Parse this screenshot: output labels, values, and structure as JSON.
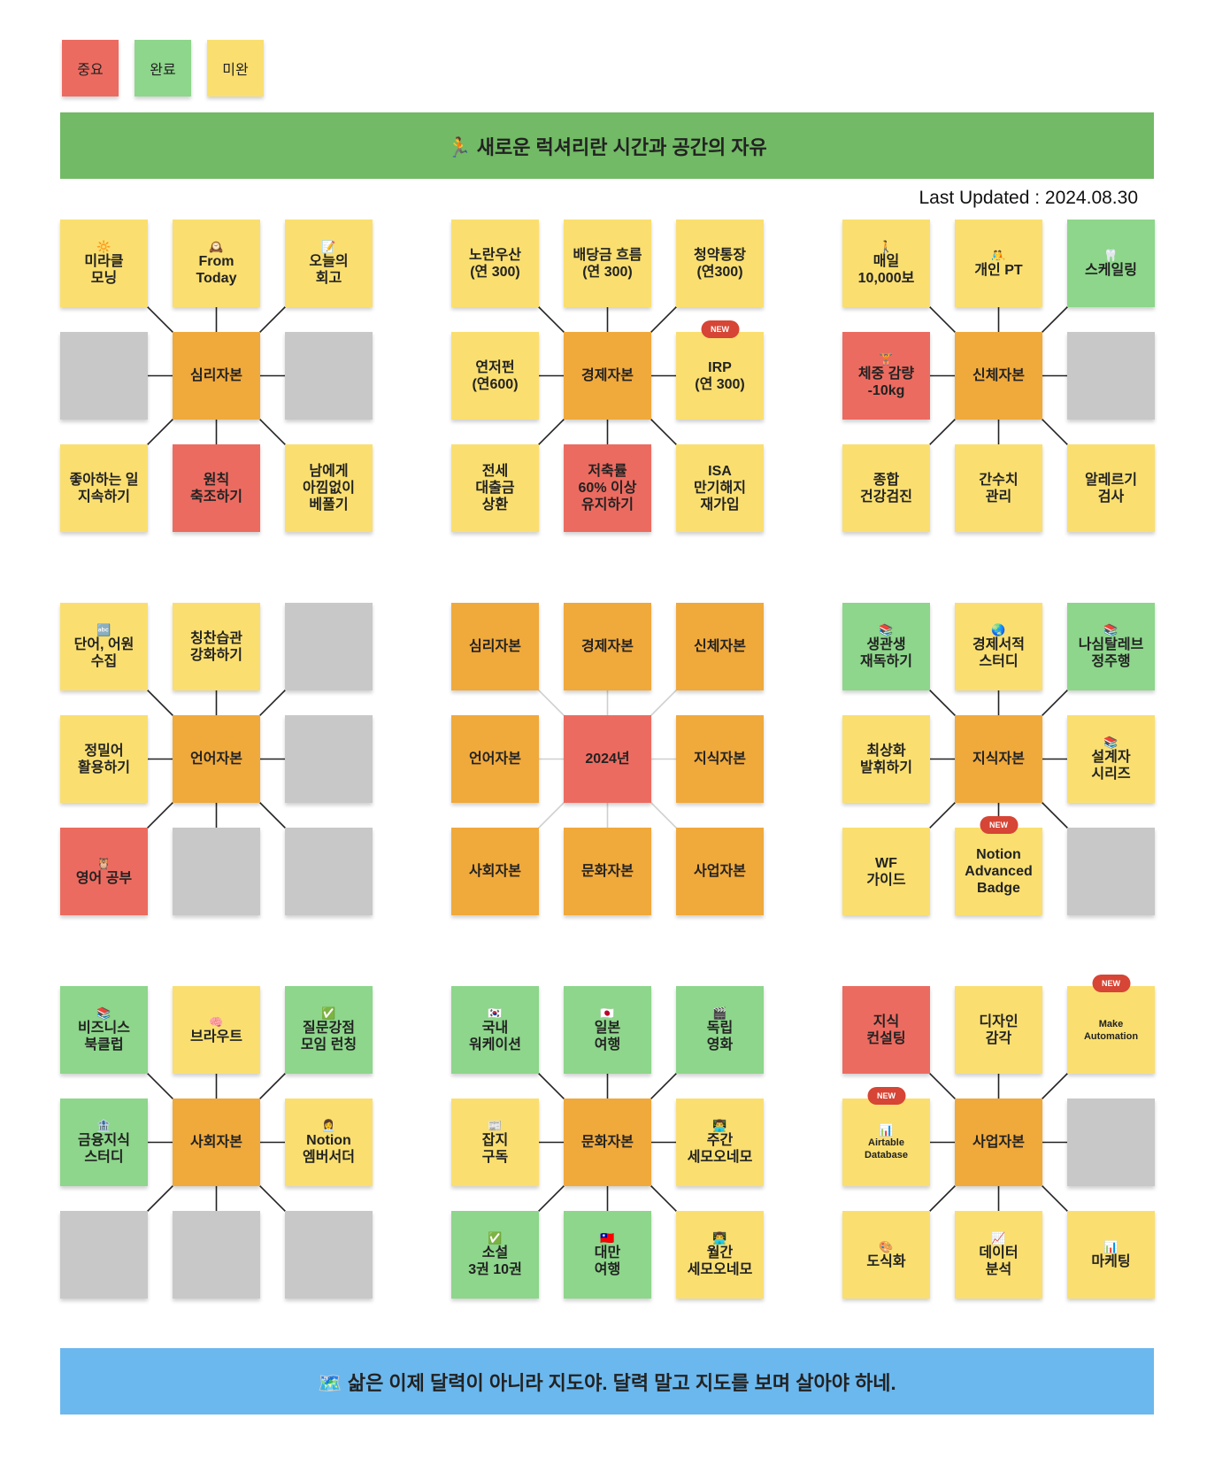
{
  "status_colors": {
    "important": "#ec6b60",
    "done": "#8dd68b",
    "incomplete": "#fadf70",
    "core": "#f0a93b",
    "empty": "#c8c8c8",
    "goal": "#ec6b60"
  },
  "legend": [
    {
      "label": "중요",
      "status": "important"
    },
    {
      "label": "완료",
      "status": "done"
    },
    {
      "label": "미완",
      "status": "incomplete"
    }
  ],
  "header": {
    "text": "🏃 새로운 럭셔리란 시간과 공간의 자유",
    "color": "#72ba65"
  },
  "last_updated": "Last Updated : 2024.08.30",
  "blocks": [
    {
      "cells": [
        {
          "icon": "🔆",
          "text": "미라클\n모닝",
          "status": "incomplete"
        },
        {
          "icon": "🕰️",
          "text": "From\nToday",
          "status": "incomplete"
        },
        {
          "icon": "📝",
          "text": "오늘의\n회고",
          "status": "incomplete"
        },
        {
          "status": "empty"
        },
        {
          "text": "심리자본",
          "status": "core"
        },
        {
          "status": "empty"
        },
        {
          "text": "좋아하는 일\n지속하기",
          "status": "incomplete"
        },
        {
          "text": "원칙\n축조하기",
          "status": "important"
        },
        {
          "text": "남에게\n아낌없이\n베풀기",
          "status": "incomplete"
        }
      ]
    },
    {
      "cells": [
        {
          "text": "노란우산\n(연 300)",
          "status": "incomplete"
        },
        {
          "text": "배당금 흐름\n(연 300)",
          "status": "incomplete"
        },
        {
          "text": "청약통장\n(연300)",
          "status": "incomplete"
        },
        {
          "text": "연저펀\n(연600)",
          "status": "incomplete"
        },
        {
          "text": "경제자본",
          "status": "core"
        },
        {
          "text": "IRP\n(연 300)",
          "status": "incomplete",
          "badge": "NEW"
        },
        {
          "text": "전세\n대출금\n상환",
          "status": "incomplete"
        },
        {
          "text": "저축률\n60% 이상\n유지하기",
          "status": "important"
        },
        {
          "text": "ISA\n만기해지\n재가입",
          "status": "incomplete"
        }
      ]
    },
    {
      "cells": [
        {
          "icon": "🚶",
          "text": "매일\n10,000보",
          "status": "incomplete"
        },
        {
          "icon": "🤼",
          "text": "개인 PT",
          "status": "incomplete"
        },
        {
          "icon": "🦷",
          "text": "스케일링",
          "status": "done"
        },
        {
          "icon": "🏋️",
          "text": "체중 감량\n-10kg",
          "status": "important"
        },
        {
          "text": "신체자본",
          "status": "core"
        },
        {
          "status": "empty"
        },
        {
          "text": "종합\n건강검진",
          "status": "incomplete"
        },
        {
          "text": "간수치\n관리",
          "status": "incomplete"
        },
        {
          "text": "알레르기\n검사",
          "status": "incomplete"
        }
      ]
    },
    {
      "cells": [
        {
          "icon": "🔤",
          "text": "단어, 어원\n수집",
          "status": "incomplete"
        },
        {
          "text": "칭찬습관\n강화하기",
          "status": "incomplete"
        },
        {
          "status": "empty"
        },
        {
          "text": "정밀어\n활용하기",
          "status": "incomplete"
        },
        {
          "text": "언어자본",
          "status": "core"
        },
        {
          "status": "empty"
        },
        {
          "icon": "🦉",
          "text": "영어 공부",
          "status": "important"
        },
        {
          "status": "empty"
        },
        {
          "status": "empty"
        }
      ]
    },
    {
      "center": true,
      "cells": [
        {
          "text": "심리자본",
          "status": "core"
        },
        {
          "text": "경제자본",
          "status": "core"
        },
        {
          "text": "신체자본",
          "status": "core"
        },
        {
          "text": "언어자본",
          "status": "core"
        },
        {
          "text": "2024년",
          "status": "goal"
        },
        {
          "text": "지식자본",
          "status": "core"
        },
        {
          "text": "사회자본",
          "status": "core"
        },
        {
          "text": "문화자본",
          "status": "core"
        },
        {
          "text": "사업자본",
          "status": "core"
        }
      ]
    },
    {
      "cells": [
        {
          "icon": "📚",
          "text": "생관생\n재독하기",
          "status": "done"
        },
        {
          "icon": "🌏",
          "text": "경제서적\n스터디",
          "status": "incomplete"
        },
        {
          "icon": "📚",
          "text": "나심탈레브\n정주행",
          "status": "done"
        },
        {
          "text": "최상화\n발휘하기",
          "status": "incomplete"
        },
        {
          "text": "지식자본",
          "status": "core"
        },
        {
          "icon": "📚",
          "text": "설계자\n시리즈",
          "status": "incomplete"
        },
        {
          "text": "WF\n가이드",
          "status": "incomplete"
        },
        {
          "text": "Notion\nAdvanced\nBadge",
          "status": "incomplete",
          "badge": "NEW"
        },
        {
          "status": "empty"
        }
      ]
    },
    {
      "cells": [
        {
          "icon": "📚",
          "text": "비즈니스\n북클럽",
          "status": "done"
        },
        {
          "icon": "🧠",
          "text": "브라우트",
          "status": "incomplete"
        },
        {
          "icon": "✅",
          "text": "질문강점\n모임 런칭",
          "status": "done"
        },
        {
          "icon": "🏦",
          "text": "금융지식\n스터디",
          "status": "done"
        },
        {
          "text": "사회자본",
          "status": "core"
        },
        {
          "icon": "👩‍💼",
          "text": "Notion\n엠버서더",
          "status": "incomplete"
        },
        {
          "status": "empty"
        },
        {
          "status": "empty"
        },
        {
          "status": "empty"
        }
      ]
    },
    {
      "cells": [
        {
          "icon": "🇰🇷",
          "text": "국내\n워케이션",
          "status": "done"
        },
        {
          "icon": "🇯🇵",
          "text": "일본\n여행",
          "status": "done"
        },
        {
          "icon": "🎬",
          "text": "독립\n영화",
          "status": "done"
        },
        {
          "icon": "📰",
          "text": "잡지\n구독",
          "status": "incomplete"
        },
        {
          "text": "문화자본",
          "status": "core"
        },
        {
          "icon": "👨‍💻",
          "text": "주간\n세모오네모",
          "status": "incomplete"
        },
        {
          "icon": "✅",
          "text": "소설\n3권 10권",
          "status": "done"
        },
        {
          "icon": "🇹🇼",
          "text": "대만\n여행",
          "status": "done"
        },
        {
          "icon": "👨‍💻",
          "text": "월간\n세모오네모",
          "status": "incomplete"
        }
      ]
    },
    {
      "cells": [
        {
          "text": "지식\n컨설팅",
          "status": "important"
        },
        {
          "text": "디자인\n감각",
          "status": "incomplete"
        },
        {
          "text": "Make\nAutomation",
          "status": "incomplete",
          "badge": "NEW",
          "small": true
        },
        {
          "icon": "📊",
          "text": "Airtable\nDatabase",
          "status": "incomplete",
          "badge": "NEW",
          "small": true
        },
        {
          "text": "사업자본",
          "status": "core"
        },
        {
          "status": "empty"
        },
        {
          "icon": "🎨",
          "text": "도식화",
          "status": "incomplete"
        },
        {
          "icon": "📈",
          "text": "데이터\n분석",
          "status": "incomplete"
        },
        {
          "icon": "📊",
          "text": "마케팅",
          "status": "incomplete"
        }
      ]
    }
  ],
  "footer": {
    "text": "🗺️ 삶은 이제 달력이 아니라 지도야. 달력 말고 지도를 보며 살아야 하네.",
    "color": "#6bb8ee"
  }
}
